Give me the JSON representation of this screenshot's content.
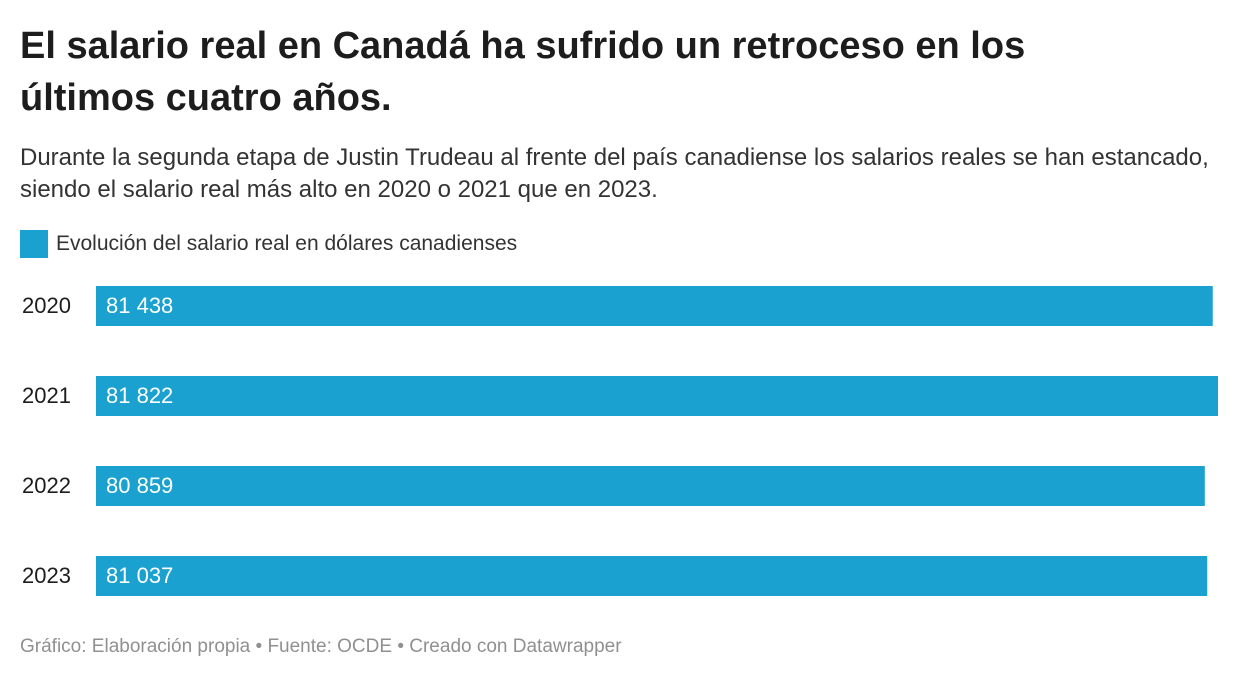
{
  "chart_data": {
    "type": "bar",
    "title": "El salario real en Canadá ha sufrido un retroceso en los últimos cuatro años.",
    "subtitle": "Durante la segunda etapa de Justin Trudeau al frente del país canadiense los salarios reales se han estancado, siendo el salario real más alto en 2020 o 2021 que en 2023.",
    "categories": [
      "2020",
      "2021",
      "2022",
      "2023"
    ],
    "series": [
      {
        "name": "Evolución del salario real en dólares canadienses",
        "color": "#1aa1cf",
        "values": [
          81438,
          81822,
          80859,
          81037
        ],
        "value_labels": [
          "81 438",
          "81 822",
          "80 859",
          "81 037"
        ]
      }
    ],
    "source": "Gráfico: Elaboración propia • Fuente: OCDE • Creado con Datawrapper"
  }
}
